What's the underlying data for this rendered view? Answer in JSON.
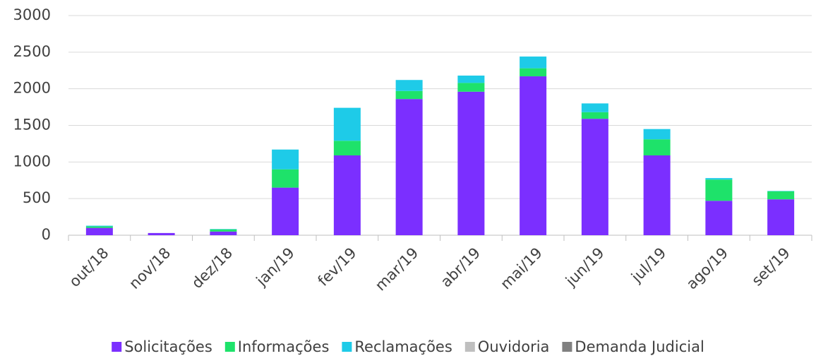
{
  "chart_data": {
    "type": "stacked_bar",
    "categories": [
      "out/18",
      "nov/18",
      "dez/18",
      "jan/19",
      "fev/19",
      "mar/19",
      "abr/19",
      "mai/19",
      "jun/19",
      "jul/19",
      "ago/19",
      "set/19"
    ],
    "series": [
      {
        "name": "Solicitações",
        "color": "#7b2fff",
        "values": [
          100,
          30,
          50,
          650,
          1090,
          1860,
          1960,
          2170,
          1590,
          1090,
          470,
          490
        ]
      },
      {
        "name": "Informações",
        "color": "#1ee26a",
        "values": [
          20,
          0,
          30,
          250,
          200,
          110,
          120,
          110,
          90,
          220,
          290,
          110
        ]
      },
      {
        "name": "Reclamações",
        "color": "#1ecbe8",
        "values": [
          10,
          0,
          5,
          270,
          450,
          150,
          100,
          160,
          120,
          140,
          20,
          5
        ]
      },
      {
        "name": "Ouvidoria",
        "color": "#bfbfbf",
        "values": [
          0,
          0,
          0,
          0,
          0,
          0,
          0,
          0,
          0,
          0,
          0,
          0
        ]
      },
      {
        "name": "Demanda Judicial",
        "color": "#808080",
        "values": [
          0,
          0,
          0,
          0,
          0,
          0,
          0,
          0,
          0,
          0,
          0,
          0
        ]
      }
    ],
    "ylim": [
      0,
      3000
    ],
    "yticks": [
      0,
      500,
      1000,
      1500,
      2000,
      2500,
      3000
    ],
    "grid": true,
    "legend": "bottom"
  }
}
